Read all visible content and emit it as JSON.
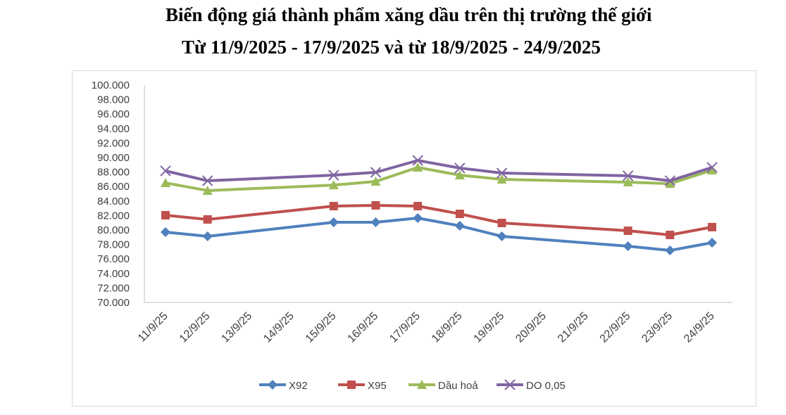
{
  "chart_data": {
    "type": "line",
    "title": "Biến động giá thành phẩm xăng dầu trên thị trường thế giới",
    "subtitle": "Từ 11/9/2025 - 17/9/2025 và từ 18/9/2025 - 24/9/2025",
    "xlabel": "",
    "ylabel": "",
    "categories": [
      "11/9/25",
      "12/9/25",
      "13/9/25",
      "14/9/25",
      "15/9/25",
      "16/9/25",
      "17/9/25",
      "18/9/25",
      "19/9/25",
      "20/9/25",
      "21/9/25",
      "22/9/25",
      "23/9/25",
      "24/9/25"
    ],
    "ylim": [
      70000,
      100000
    ],
    "yticks": [
      "70.000",
      "72.000",
      "74.000",
      "76.000",
      "78.000",
      "80.000",
      "82.000",
      "84.000",
      "86.000",
      "88.000",
      "90.000",
      "92.000",
      "94.000",
      "96.000",
      "98.000",
      "100.000"
    ],
    "grid": false,
    "legend": "bottom",
    "series": [
      {
        "name": "X92",
        "color": "#4f81bd",
        "marker": "diamond",
        "values": [
          79710,
          79130,
          null,
          null,
          81070,
          81070,
          81650,
          80580,
          79130,
          null,
          null,
          77770,
          77180,
          78250
        ]
      },
      {
        "name": "X95",
        "color": "#c0504d",
        "marker": "square",
        "values": [
          82040,
          81460,
          null,
          null,
          83300,
          83400,
          83300,
          82230,
          80970,
          null,
          null,
          79900,
          79320,
          80400
        ]
      },
      {
        "name": "Dầu hoả",
        "color": "#9bbb59",
        "marker": "triangle",
        "values": [
          86500,
          85440,
          null,
          null,
          86200,
          86700,
          88640,
          87570,
          86990,
          null,
          null,
          86600,
          86400,
          88250
        ]
      },
      {
        "name": "DO 0,05",
        "color": "#8064a2",
        "marker": "x",
        "values": [
          88160,
          86800,
          null,
          null,
          87570,
          87960,
          89600,
          88550,
          87860,
          null,
          null,
          87480,
          86800,
          88640
        ]
      }
    ]
  }
}
